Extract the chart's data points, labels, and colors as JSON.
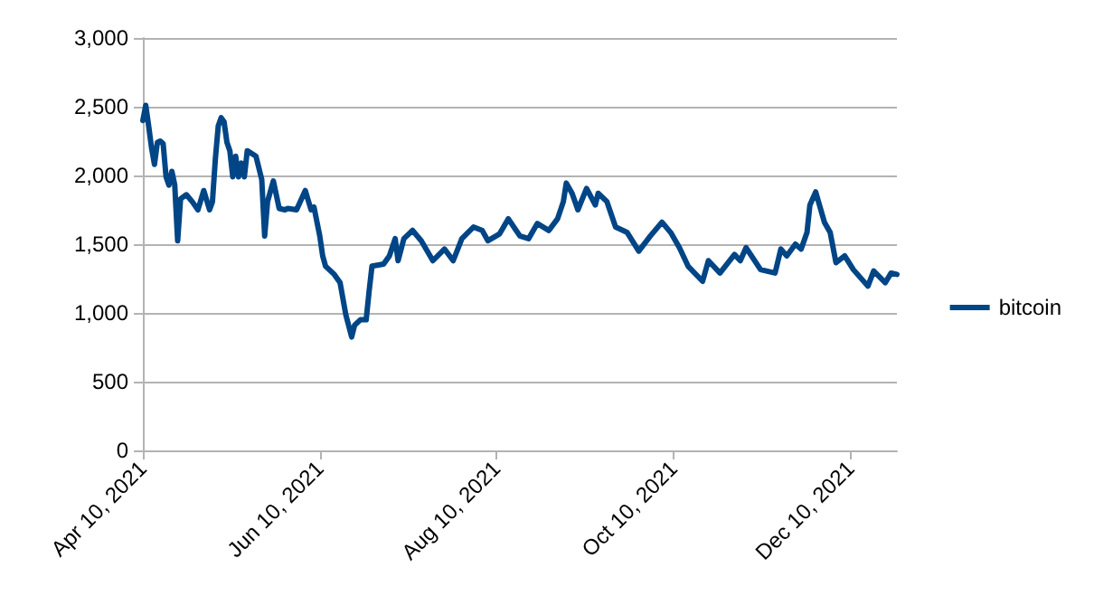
{
  "chart_data": {
    "type": "line",
    "x": [
      "2021-04-10",
      "2021-04-11",
      "2021-04-12",
      "2021-04-13",
      "2021-04-14",
      "2021-04-15",
      "2021-04-16",
      "2021-04-17",
      "2021-04-18",
      "2021-04-19",
      "2021-04-20",
      "2021-04-21",
      "2021-04-22",
      "2021-04-23",
      "2021-04-25",
      "2021-04-27",
      "2021-04-29",
      "2021-05-01",
      "2021-05-03",
      "2021-05-04",
      "2021-05-05",
      "2021-05-06",
      "2021-05-07",
      "2021-05-08",
      "2021-05-09",
      "2021-05-10",
      "2021-05-11",
      "2021-05-12",
      "2021-05-13",
      "2021-05-14",
      "2021-05-15",
      "2021-05-16",
      "2021-05-19",
      "2021-05-21",
      "2021-05-22",
      "2021-05-23",
      "2021-05-25",
      "2021-05-27",
      "2021-05-29",
      "2021-05-30",
      "2021-06-02",
      "2021-06-05",
      "2021-06-07",
      "2021-06-08",
      "2021-06-10",
      "2021-06-11",
      "2021-06-12",
      "2021-06-15",
      "2021-06-17",
      "2021-06-19",
      "2021-06-21",
      "2021-06-22",
      "2021-06-24",
      "2021-06-26",
      "2021-06-27",
      "2021-06-28",
      "2021-07-02",
      "2021-07-04",
      "2021-07-06",
      "2021-07-07",
      "2021-07-09",
      "2021-07-12",
      "2021-07-15",
      "2021-07-19",
      "2021-07-23",
      "2021-07-26",
      "2021-07-29",
      "2021-08-02",
      "2021-08-05",
      "2021-08-07",
      "2021-08-11",
      "2021-08-14",
      "2021-08-18",
      "2021-08-21",
      "2021-08-24",
      "2021-08-28",
      "2021-08-31",
      "2021-09-02",
      "2021-09-03",
      "2021-09-05",
      "2021-09-07",
      "2021-09-10",
      "2021-09-13",
      "2021-09-14",
      "2021-09-17",
      "2021-09-20",
      "2021-09-24",
      "2021-09-28",
      "2021-10-02",
      "2021-10-06",
      "2021-10-09",
      "2021-10-12",
      "2021-10-15",
      "2021-10-20",
      "2021-10-22",
      "2021-10-26",
      "2021-10-31",
      "2021-11-02",
      "2021-11-04",
      "2021-11-09",
      "2021-11-14",
      "2021-11-16",
      "2021-11-18",
      "2021-11-21",
      "2021-11-23",
      "2021-11-25",
      "2021-11-26",
      "2021-11-28",
      "2021-12-01",
      "2021-12-03",
      "2021-12-05",
      "2021-12-08",
      "2021-12-11",
      "2021-12-16",
      "2021-12-18",
      "2021-12-22",
      "2021-12-24",
      "2021-12-26"
    ],
    "series": [
      {
        "name": "bitcoin",
        "color": "#004586",
        "values": [
          2400,
          2510,
          2360,
          2200,
          2080,
          2240,
          2250,
          2230,
          1990,
          1930,
          2030,
          1930,
          1525,
          1830,
          1860,
          1810,
          1750,
          1890,
          1750,
          1810,
          2120,
          2360,
          2420,
          2390,
          2240,
          2180,
          1990,
          2140,
          1990,
          2090,
          1990,
          2180,
          2140,
          1970,
          1560,
          1810,
          1960,
          1760,
          1750,
          1760,
          1750,
          1890,
          1750,
          1770,
          1560,
          1415,
          1340,
          1280,
          1220,
          985,
          825,
          910,
          950,
          950,
          1155,
          1340,
          1355,
          1415,
          1540,
          1380,
          1540,
          1600,
          1525,
          1380,
          1465,
          1380,
          1540,
          1625,
          1600,
          1525,
          1575,
          1685,
          1560,
          1540,
          1650,
          1600,
          1685,
          1810,
          1945,
          1870,
          1750,
          1905,
          1785,
          1870,
          1810,
          1625,
          1585,
          1450,
          1560,
          1660,
          1585,
          1475,
          1340,
          1230,
          1380,
          1290,
          1425,
          1380,
          1475,
          1315,
          1290,
          1465,
          1415,
          1500,
          1465,
          1585,
          1785,
          1880,
          1660,
          1585,
          1365,
          1415,
          1315,
          1195,
          1305,
          1220,
          1290,
          1280
        ]
      }
    ],
    "xlim": [
      "2021-04-10",
      "2021-12-26"
    ],
    "xticks": [
      {
        "value": "2021-04-10",
        "label": "Apr 10, 2021"
      },
      {
        "value": "2021-06-10",
        "label": "Jun 10, 2021"
      },
      {
        "value": "2021-08-10",
        "label": "Aug 10, 2021"
      },
      {
        "value": "2021-10-10",
        "label": "Oct 10, 2021"
      },
      {
        "value": "2021-12-10",
        "label": "Dec 10, 2021"
      }
    ],
    "ylim": [
      0,
      3000
    ],
    "yticks": [
      {
        "value": 0,
        "label": "0"
      },
      {
        "value": 500,
        "label": "500"
      },
      {
        "value": 1000,
        "label": "1,000"
      },
      {
        "value": 1500,
        "label": "1,500"
      },
      {
        "value": 2000,
        "label": "2,000"
      },
      {
        "value": 2500,
        "label": "2,500"
      },
      {
        "value": 3000,
        "label": "3,000"
      }
    ],
    "grid": "y",
    "legend": "right",
    "marker": "none",
    "line_style": "solid"
  }
}
